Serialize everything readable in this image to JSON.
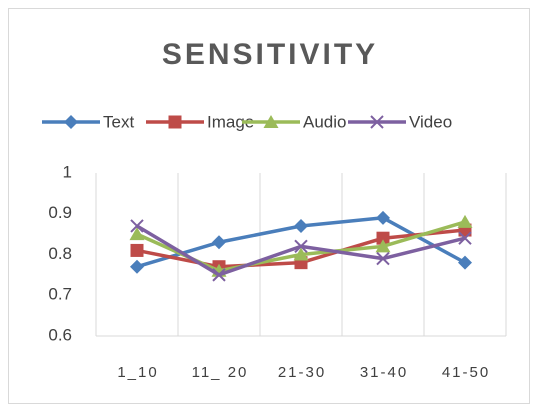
{
  "chart_data": {
    "type": "line",
    "title": "SENSITIVITY",
    "categories": [
      "1_10",
      "11_ 20",
      "21-30",
      "31-40",
      "41-50"
    ],
    "series": [
      {
        "name": "Text",
        "color": "#4a7ebb",
        "marker": "diamond",
        "values": [
          0.77,
          0.83,
          0.87,
          0.89,
          0.78
        ]
      },
      {
        "name": "Image",
        "color": "#be4b48",
        "marker": "square",
        "values": [
          0.81,
          0.77,
          0.78,
          0.84,
          0.86
        ]
      },
      {
        "name": "Audio",
        "color": "#9bbb59",
        "marker": "triangle",
        "values": [
          0.85,
          0.76,
          0.8,
          0.82,
          0.88
        ]
      },
      {
        "name": "Video",
        "color": "#7d60a0",
        "marker": "x",
        "values": [
          0.87,
          0.75,
          0.82,
          0.79,
          0.84
        ]
      }
    ],
    "ylim": [
      0.6,
      1
    ],
    "yticks": [
      0.6,
      0.7,
      0.8,
      0.9,
      1
    ],
    "xgrid": true,
    "legend": "top"
  }
}
